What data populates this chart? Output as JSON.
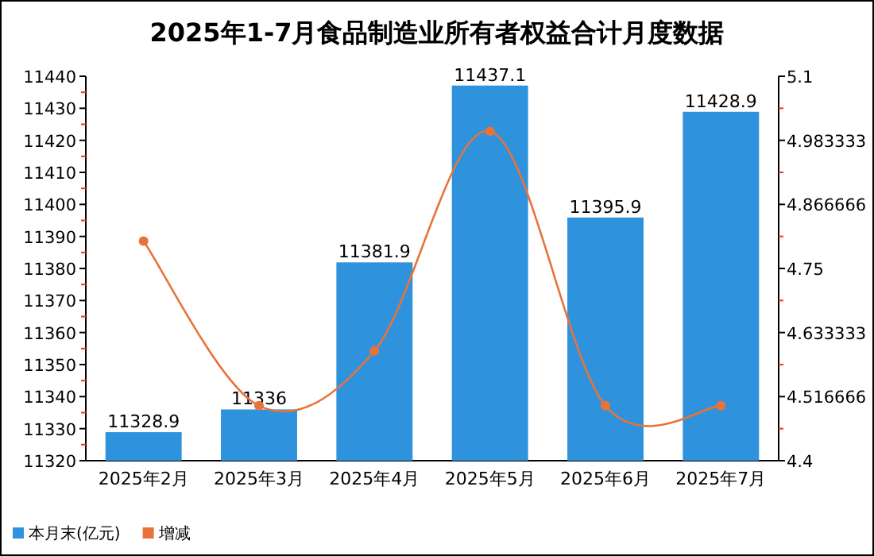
{
  "chart_data": {
    "type": "bar",
    "title": "2025年1-7月食品制造业所有者权益合计月度数据",
    "categories": [
      "2025年2月",
      "2025年3月",
      "2025年4月",
      "2025年5月",
      "2025年6月",
      "2025年7月"
    ],
    "series": [
      {
        "name": "本月末(亿元)",
        "color": "#2e93dc",
        "values": [
          11328.9,
          11336,
          11381.9,
          11437.1,
          11395.9,
          11428.9
        ],
        "value_labels": [
          "11328.9",
          "11336",
          "11381.9",
          "11437.1",
          "11395.9",
          "11428.9"
        ]
      },
      {
        "name": "增减",
        "type": "line",
        "axis": "y2",
        "color": "#e8733a",
        "marker": "circle",
        "values": [
          4.8,
          4.5,
          4.6,
          5.0,
          4.5,
          4.5
        ]
      }
    ],
    "ylim": [
      11320,
      11440
    ],
    "yticks": [
      11320,
      11330,
      11340,
      11350,
      11360,
      11370,
      11380,
      11390,
      11400,
      11410,
      11420,
      11430,
      11440
    ],
    "y2lim": [
      4.4,
      5.1
    ],
    "y2ticks": [
      4.4,
      {
        "value": 4.516666,
        "label": "4.516666"
      },
      {
        "value": 4.633333,
        "label": "4.633333"
      },
      4.75,
      {
        "value": 4.866666,
        "label": "4.866666"
      },
      {
        "value": 4.983333,
        "label": "4.983333"
      },
      5.1
    ],
    "grid": false,
    "legend": "bottom left"
  }
}
